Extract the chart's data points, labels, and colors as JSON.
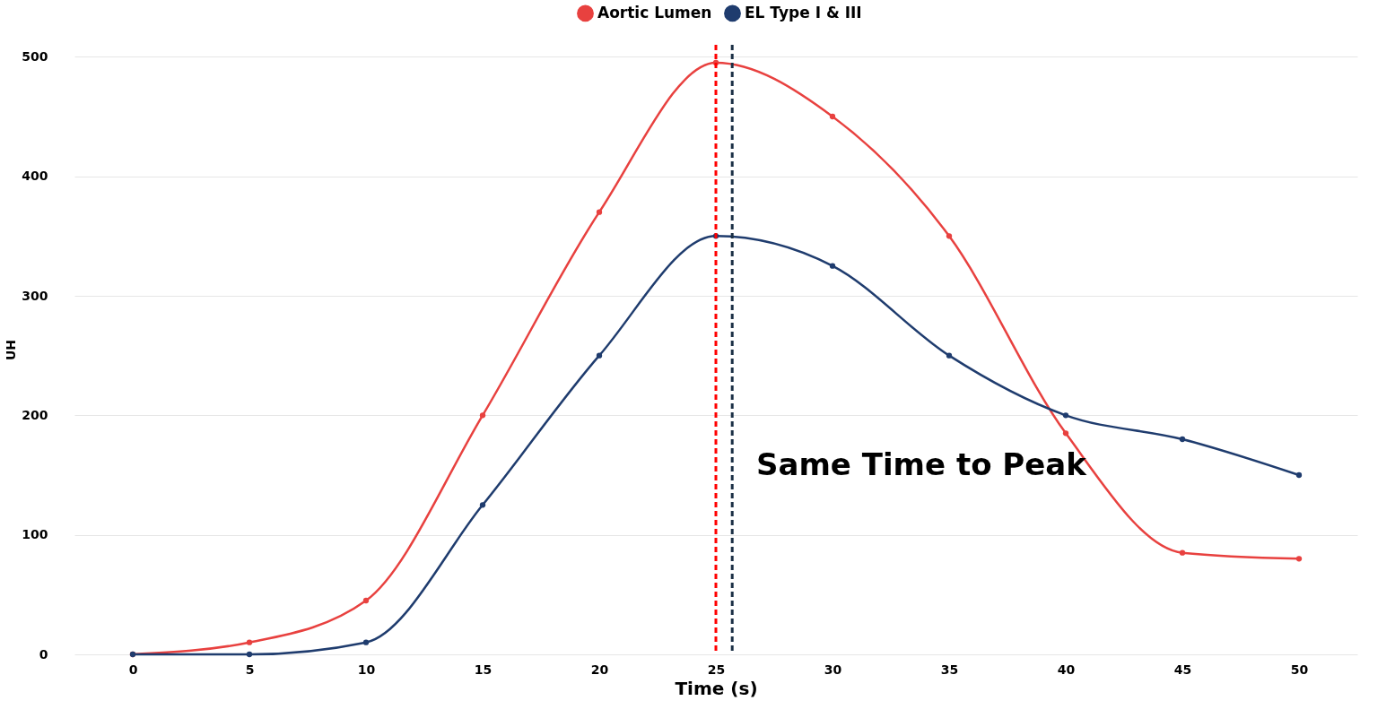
{
  "chart_data": {
    "type": "line",
    "xlabel": "Time  (s)",
    "ylabel": "UH",
    "x": [
      0,
      5,
      10,
      15,
      20,
      25,
      30,
      35,
      40,
      45,
      50
    ],
    "series": [
      {
        "name": "Aortic Lumen",
        "color": "#e8413f",
        "values": [
          0,
          10,
          45,
          200,
          370,
          495,
          450,
          350,
          185,
          85,
          80
        ]
      },
      {
        "name": "EL Type I & III",
        "color": "#1f3c6e",
        "values": [
          0,
          0,
          10,
          125,
          250,
          350,
          325,
          250,
          200,
          180,
          150
        ]
      }
    ],
    "xlim": [
      -2.5,
      52.5
    ],
    "xticks": [
      0,
      5,
      10,
      15,
      20,
      25,
      30,
      35,
      40,
      45,
      50
    ],
    "ylim": [
      0,
      510
    ],
    "yticks": [
      0,
      100,
      200,
      300,
      400,
      500
    ],
    "ref_lines": [
      {
        "axis": "x",
        "value": 25,
        "color": "#ff0000",
        "line_style": "dashed"
      },
      {
        "axis": "x",
        "value": 25.7,
        "color": "#1b2f45",
        "line_style": "dashed"
      }
    ],
    "annotations": [
      "Same Time to Peak"
    ],
    "grid": "y",
    "legend": "top",
    "marker": "circle",
    "line_style": "solid"
  }
}
